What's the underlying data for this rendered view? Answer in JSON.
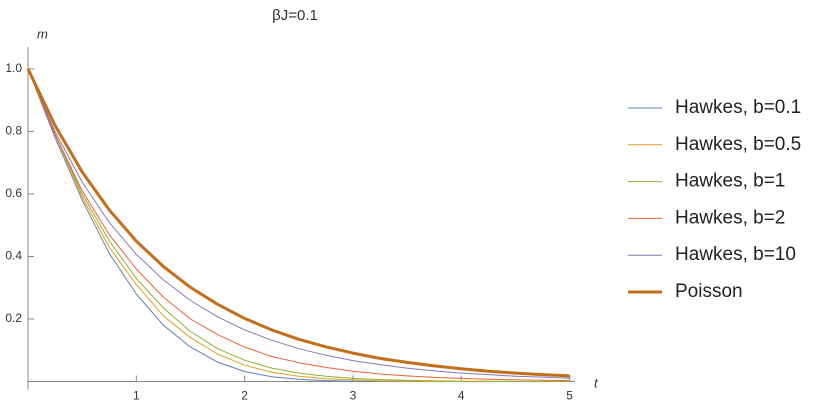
{
  "chart_data": {
    "type": "line",
    "title": "βJ=0.1",
    "x_label": "t",
    "y_label": "m",
    "x": [
      0,
      0.25,
      0.5,
      0.75,
      1,
      1.25,
      1.5,
      1.75,
      2,
      2.25,
      2.5,
      2.75,
      3,
      3.25,
      3.5,
      3.75,
      4,
      4.25,
      4.5,
      4.75,
      5
    ],
    "series": [
      {
        "name": "Hawkes, b=0.1",
        "color": "#5e81b5",
        "values": [
          1,
          0.78,
          0.58,
          0.41,
          0.28,
          0.18,
          0.11,
          0.062,
          0.032,
          0.015,
          0.007,
          0.003,
          0.001,
          0,
          0,
          0,
          0,
          0,
          0,
          0,
          0
        ]
      },
      {
        "name": "Hawkes, b=0.5",
        "color": "#e19c24",
        "values": [
          1,
          0.79,
          0.59,
          0.43,
          0.31,
          0.21,
          0.14,
          0.088,
          0.052,
          0.03,
          0.017,
          0.009,
          0.005,
          0.002,
          0.001,
          0,
          0,
          0,
          0,
          0,
          0
        ]
      },
      {
        "name": "Hawkes, b=1",
        "color": "#8fb032",
        "values": [
          1,
          0.79,
          0.6,
          0.45,
          0.33,
          0.235,
          0.16,
          0.105,
          0.068,
          0.043,
          0.027,
          0.017,
          0.01,
          0.006,
          0.004,
          0.002,
          0.001,
          0.001,
          0,
          0,
          0
        ]
      },
      {
        "name": "Hawkes, b=2",
        "color": "#eb6235",
        "values": [
          1,
          0.79,
          0.61,
          0.47,
          0.36,
          0.27,
          0.2,
          0.15,
          0.11,
          0.08,
          0.06,
          0.045,
          0.033,
          0.024,
          0.018,
          0.013,
          0.01,
          0.007,
          0.005,
          0.004,
          0.003
        ]
      },
      {
        "name": "Hawkes, b=10",
        "color": "#8778b3",
        "values": [
          1,
          0.799,
          0.638,
          0.509,
          0.407,
          0.325,
          0.259,
          0.207,
          0.165,
          0.132,
          0.105,
          0.084,
          0.067,
          0.054,
          0.043,
          0.034,
          0.027,
          0.022,
          0.017,
          0.014,
          0.011
        ]
      },
      {
        "name": "Poisson",
        "color": "#c56e1a",
        "values": [
          1,
          0.819,
          0.67,
          0.549,
          0.449,
          0.368,
          0.301,
          0.247,
          0.202,
          0.165,
          0.135,
          0.111,
          0.091,
          0.074,
          0.061,
          0.05,
          0.041,
          0.033,
          0.027,
          0.022,
          0.018
        ]
      }
    ],
    "xlim": [
      0,
      5.05
    ],
    "ylim": [
      0,
      1.07
    ],
    "xticks": [
      1,
      2,
      3,
      4,
      5
    ],
    "yticks": [
      0.2,
      0.4,
      0.6,
      0.8,
      {
        "value": 1,
        "label": "1.0"
      }
    ],
    "legend": "right"
  }
}
